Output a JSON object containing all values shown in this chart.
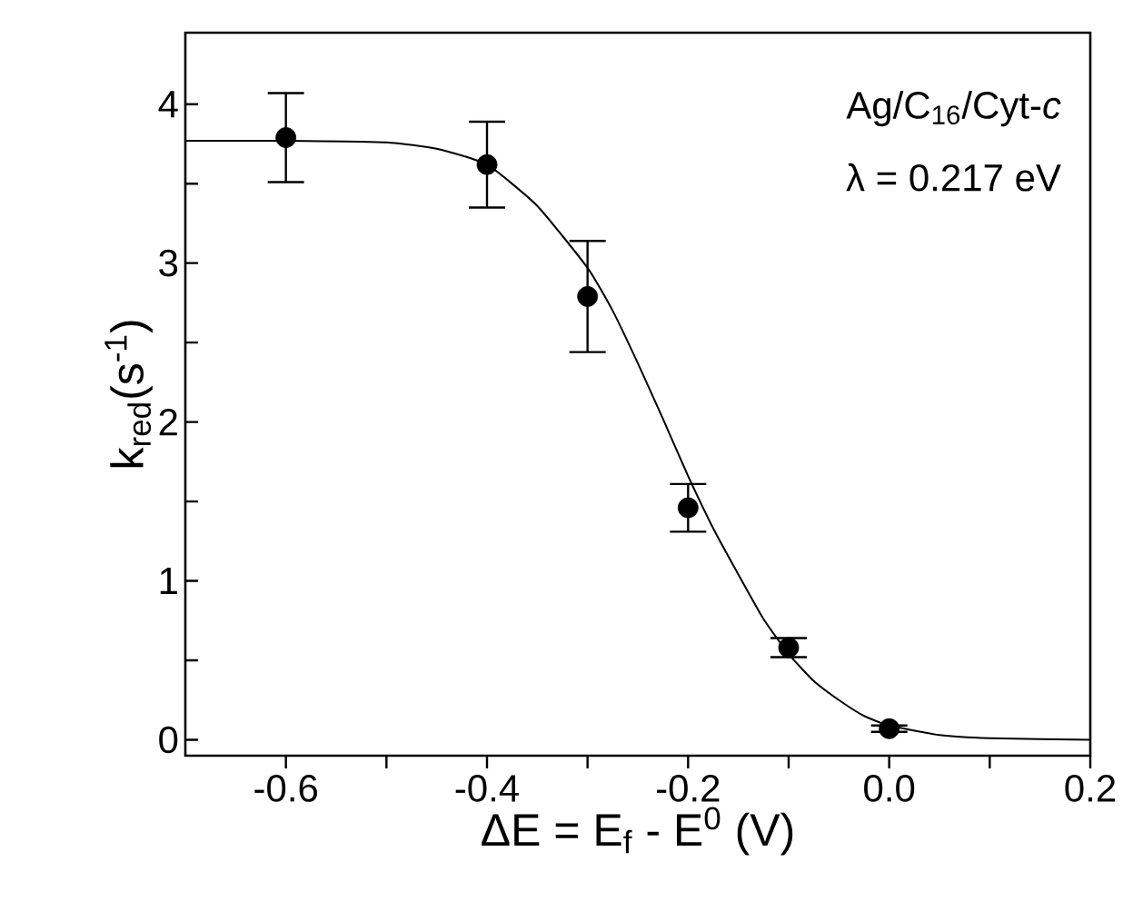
{
  "chart_data": {
    "type": "scatter",
    "xlabel": "ΔE = E$_{f}$ - E$^{0}$ (V)",
    "ylabel": "k$_{red}$(s$^{-1}$)",
    "annotations": [
      "Ag/C$_{16}$/Cyt-*c*",
      "λ = 0.217 eV"
    ],
    "xlim": [
      -0.7,
      0.2
    ],
    "ylim": [
      -0.1,
      4.45
    ],
    "xticks": [
      -0.6,
      {
        "value": -0.5,
        "label": null
      },
      -0.4,
      {
        "value": -0.3,
        "label": null
      },
      -0.2,
      {
        "value": -0.1,
        "label": null
      },
      {
        "value": 0,
        "label": "0.0"
      },
      {
        "value": 0.1,
        "label": null
      },
      0.2
    ],
    "yticks": [
      0,
      {
        "value": 0.5,
        "label": null
      },
      1,
      {
        "value": 1.5,
        "label": null
      },
      2,
      {
        "value": 2.5,
        "label": null
      },
      3,
      {
        "value": 3.5,
        "label": null
      },
      4
    ],
    "series": [
      {
        "color": "#000000",
        "marker": "circle",
        "x": [
          -0.6,
          -0.4,
          -0.3,
          -0.2,
          -0.1,
          0.0
        ],
        "values": [
          3.79,
          3.62,
          2.79,
          1.46,
          0.58,
          0.07
        ],
        "errors": [
          0.28,
          0.27,
          0.35,
          0.15,
          0.06,
          0.02
        ]
      },
      {
        "type": "line",
        "color": "#000000",
        "marker": "none",
        "line_style": "solid",
        "x": [
          -0.7,
          -0.6,
          -0.5,
          -0.45,
          -0.4,
          -0.35,
          -0.3,
          -0.275,
          -0.25,
          -0.225,
          -0.2,
          -0.175,
          -0.15,
          -0.125,
          -0.1,
          -0.075,
          -0.05,
          -0.025,
          0.0,
          0.05,
          0.1,
          0.2
        ],
        "values": [
          3.77,
          3.77,
          3.76,
          3.72,
          3.62,
          3.36,
          2.97,
          2.7,
          2.37,
          2.02,
          1.66,
          1.33,
          1.04,
          0.76,
          0.54,
          0.37,
          0.25,
          0.15,
          0.09,
          0.03,
          0.01,
          0.0
        ]
      }
    ]
  }
}
